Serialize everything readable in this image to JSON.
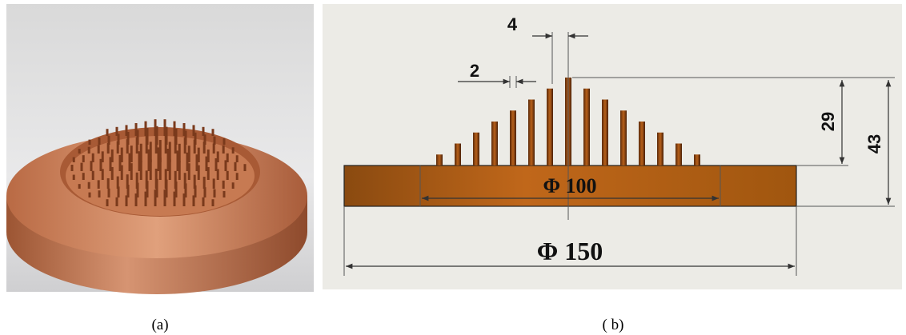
{
  "figure": {
    "panel_b": {
      "dimensions": {
        "fin_pitch": "4",
        "fin_width": "2",
        "fin_height": "29",
        "total_height": "43",
        "fin_area_diameter": "Φ 100",
        "base_diameter": "Φ 150"
      }
    },
    "captions": {
      "a": "(a)",
      "b": "( b)"
    }
  }
}
